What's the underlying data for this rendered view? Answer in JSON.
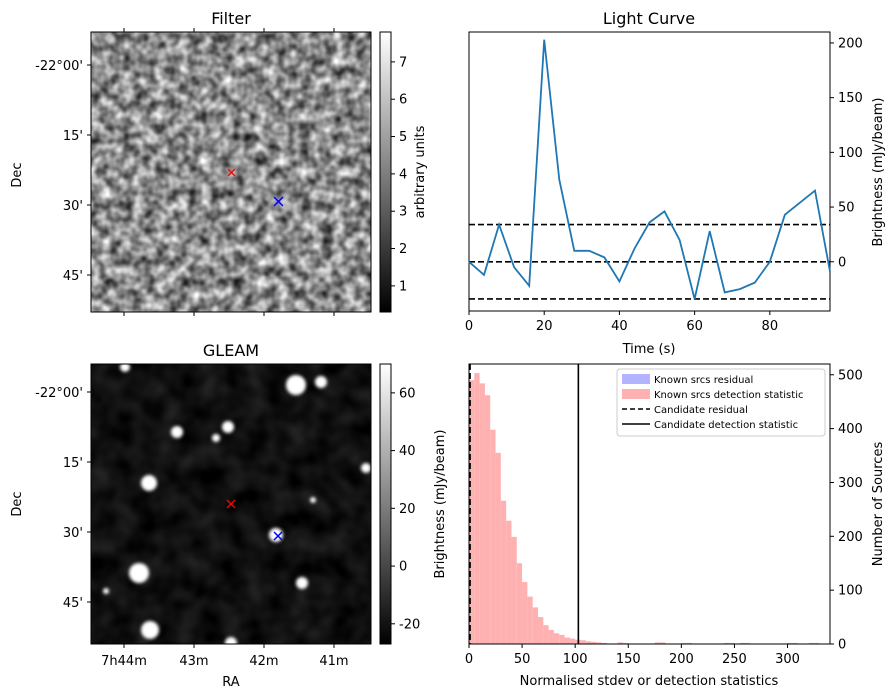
{
  "chart_data": [
    {
      "type": "heatmap",
      "title": "Filter",
      "xlabel": "",
      "ylabel": "Dec",
      "ytick_labels": [
        "-22°00'",
        "15'",
        "30'",
        "45'"
      ],
      "colorbar": {
        "label": "arbitrary units",
        "ticks": [
          1,
          2,
          3,
          4,
          5,
          6,
          7
        ],
        "range": [
          0.3,
          7.8
        ],
        "cmap": "gray"
      },
      "markers": [
        {
          "symbol": "x",
          "color": "#ff0000"
        },
        {
          "symbol": "x",
          "color": "#0000ff"
        }
      ]
    },
    {
      "type": "line",
      "title": "Light Curve",
      "xlabel": "Time (s)",
      "ylabel": "Brightness (mJy/beam)",
      "xlim": [
        0,
        96
      ],
      "ylim": [
        -45,
        210
      ],
      "x_ticks": [
        0,
        20,
        40,
        60,
        80
      ],
      "y_ticks": [
        0,
        50,
        100,
        150,
        200
      ],
      "y_axis_side": "right",
      "color": "#1f77b4",
      "x": [
        0,
        4,
        8,
        12,
        16,
        20,
        24,
        28,
        32,
        36,
        40,
        44,
        48,
        52,
        56,
        60,
        64,
        68,
        72,
        76,
        80,
        84,
        88,
        92,
        96
      ],
      "y": [
        0,
        -12,
        34,
        -5,
        -22,
        203,
        75,
        10,
        10,
        4,
        -18,
        12,
        36,
        46,
        20,
        -34,
        28,
        -28,
        -25,
        -19,
        0,
        43,
        54,
        65,
        -9
      ],
      "hlines": [
        {
          "y": 34,
          "style": "dashed",
          "color": "#000000"
        },
        {
          "y": 0,
          "style": "dashed",
          "color": "#000000"
        },
        {
          "y": -34,
          "style": "dashed",
          "color": "#000000"
        }
      ]
    },
    {
      "type": "heatmap",
      "title": "GLEAM",
      "xlabel": "RA",
      "ylabel": "Dec",
      "xtick_labels": [
        "7h44m",
        "43m",
        "42m",
        "41m"
      ],
      "ytick_labels": [
        "-22°00'",
        "15'",
        "30'",
        "45'"
      ],
      "colorbar": {
        "label": "",
        "ticks": [
          -20,
          0,
          20,
          40,
          60
        ],
        "range": [
          -27,
          70
        ],
        "cmap": "gray"
      },
      "markers": [
        {
          "symbol": "x",
          "color": "#ff0000"
        },
        {
          "symbol": "x",
          "color": "#0000ff"
        }
      ]
    },
    {
      "type": "bar",
      "title": "",
      "xlabel": "Normalised stdev or detection statistics",
      "ylabel_left": "Brightness (mJy/beam)",
      "ylabel": "Number of Sources",
      "xlim": [
        0,
        340
      ],
      "ylim": [
        0,
        520
      ],
      "x_ticks": [
        0,
        50,
        100,
        150,
        200,
        250,
        300
      ],
      "y_ticks": [
        0,
        100,
        200,
        300,
        400,
        500
      ],
      "bin_width": 5,
      "bin_starts": [
        0,
        5,
        10,
        15,
        20,
        25,
        30,
        35,
        40,
        45,
        50,
        55,
        60,
        65,
        70,
        75,
        80,
        85,
        90,
        95,
        100,
        105,
        110,
        115,
        120,
        125,
        140,
        145,
        175,
        180,
        200,
        205,
        240,
        245,
        255,
        260,
        300,
        305,
        320,
        325
      ],
      "values": [
        490,
        503,
        484,
        462,
        398,
        355,
        266,
        229,
        199,
        150,
        115,
        88,
        68,
        50,
        35,
        26,
        20,
        17,
        12,
        10,
        8,
        7,
        5,
        4,
        3,
        2,
        3,
        2,
        3,
        3,
        2,
        2,
        2,
        2,
        2,
        2,
        2,
        2,
        2,
        2
      ],
      "series": [
        {
          "name": "Known srcs residual",
          "color": "#b3b3ff",
          "values": []
        },
        {
          "name": "Known srcs detection statistic",
          "color": "#ffb0b0"
        }
      ],
      "vlines": [
        {
          "name": "Candidate residual",
          "x": 1,
          "style": "dashed",
          "color": "#000000"
        },
        {
          "name": "Candidate detection statistic",
          "x": 103,
          "style": "solid",
          "color": "#000000"
        }
      ],
      "legend": "top-right"
    }
  ]
}
